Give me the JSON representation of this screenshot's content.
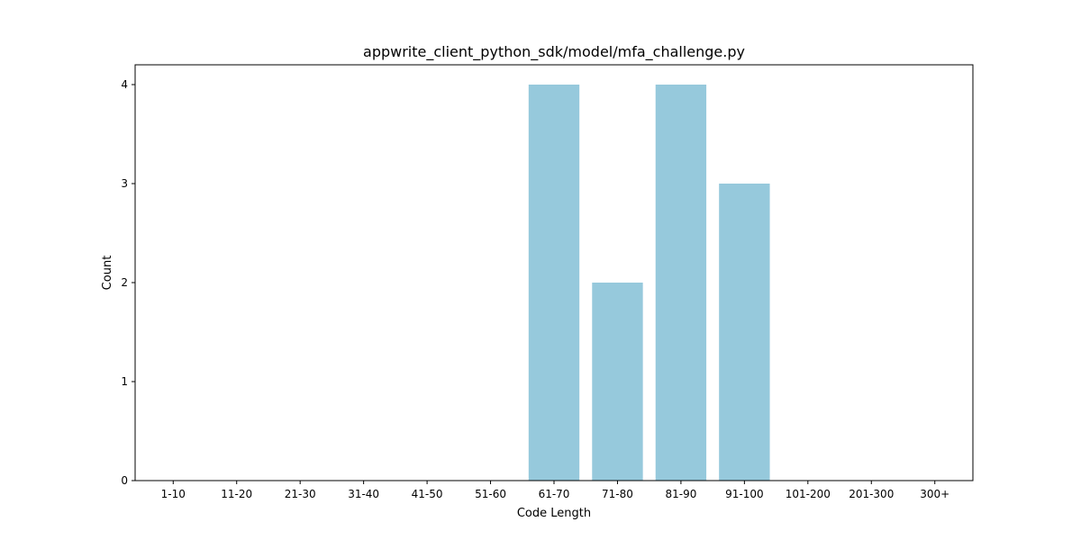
{
  "chart_data": {
    "type": "bar",
    "title": "appwrite_client_python_sdk/model/mfa_challenge.py",
    "xlabel": "Code Length",
    "ylabel": "Count",
    "categories": [
      "1-10",
      "11-20",
      "21-30",
      "31-40",
      "41-50",
      "51-60",
      "61-70",
      "71-80",
      "81-90",
      "91-100",
      "101-200",
      "201-300",
      "300+"
    ],
    "values": [
      0,
      0,
      0,
      0,
      0,
      0,
      4,
      2,
      4,
      3,
      0,
      0,
      0
    ],
    "ylim": [
      0,
      4.2
    ],
    "yticks": [
      0,
      1,
      2,
      3,
      4
    ],
    "grid": false,
    "legend": "none",
    "bar_color": "#96c9dc"
  }
}
